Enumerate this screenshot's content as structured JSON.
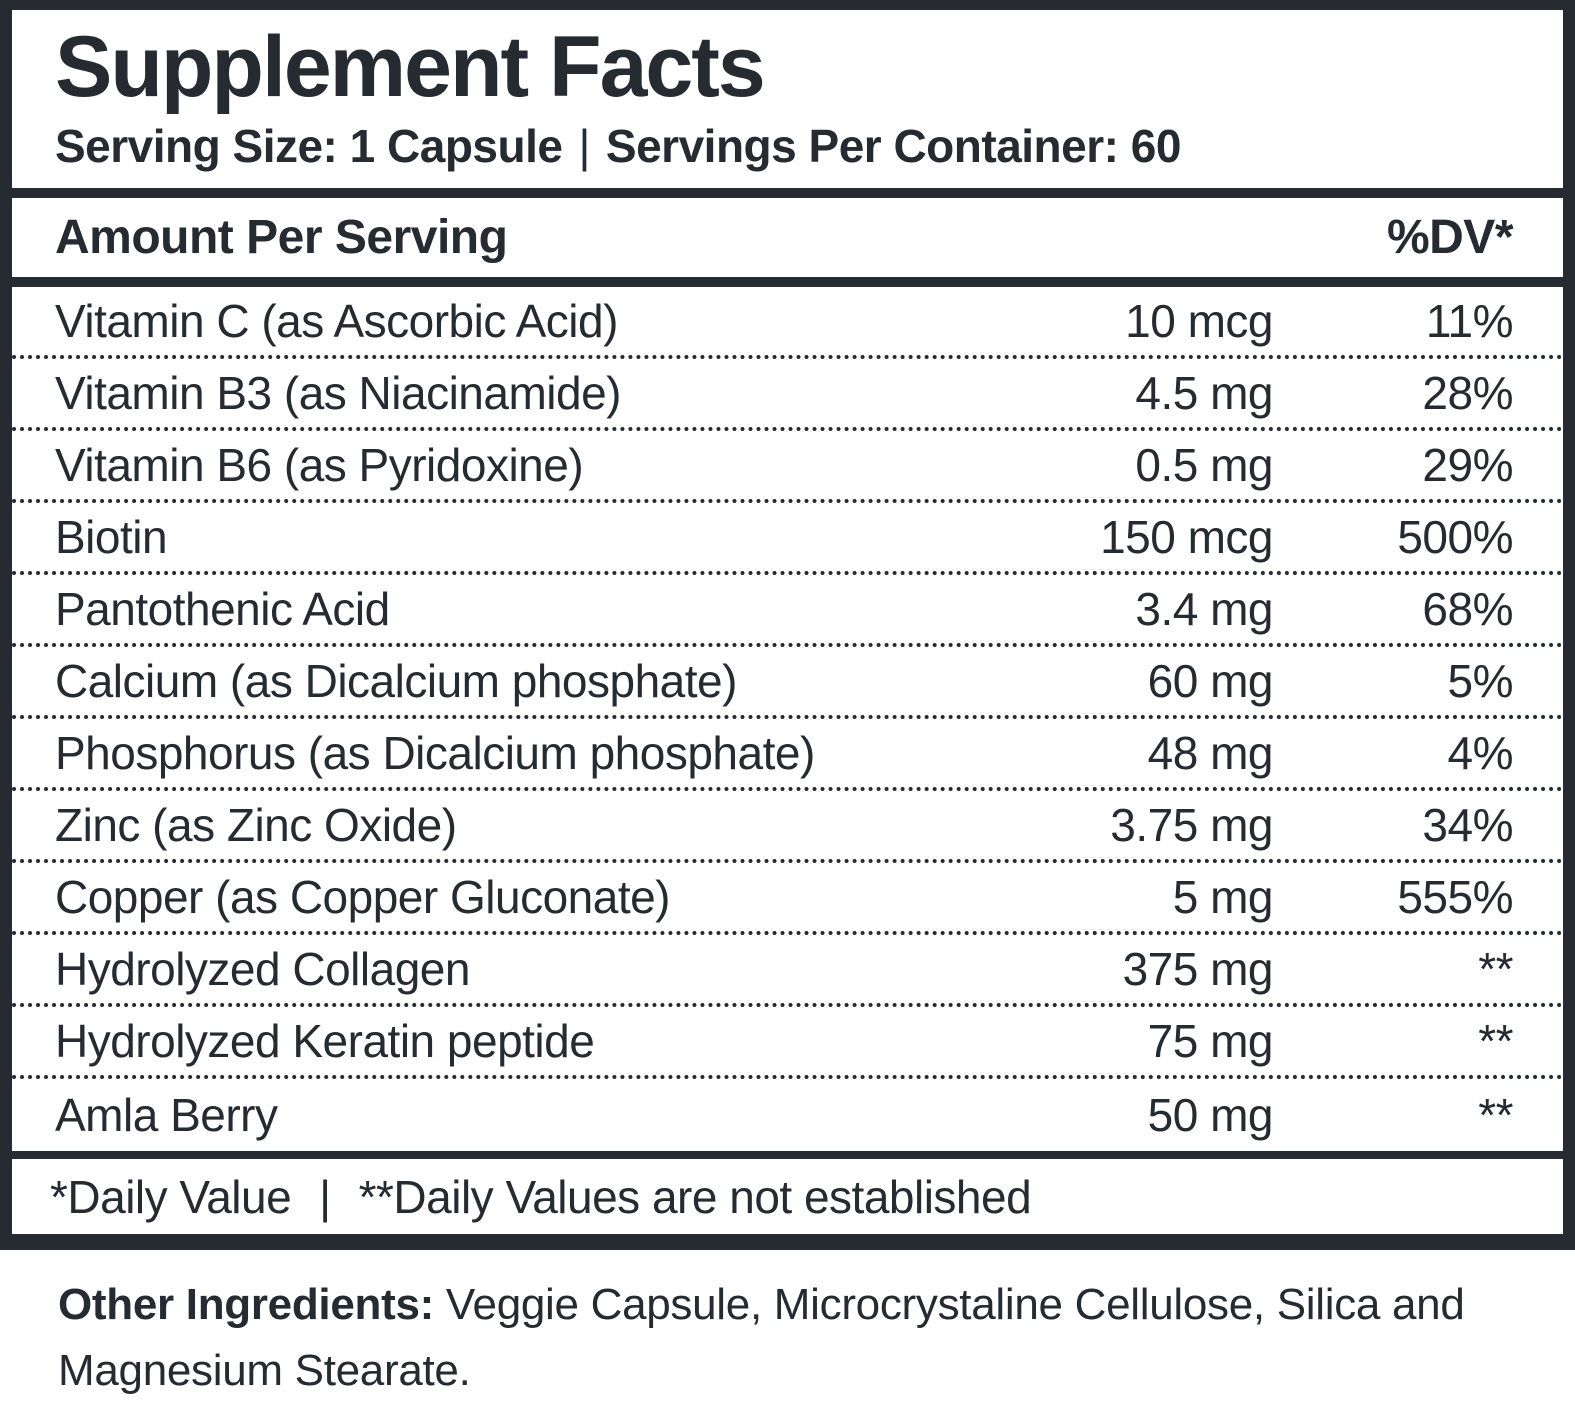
{
  "title": "Supplement Facts",
  "serving": {
    "size": "Serving Size: 1 Capsule",
    "separator": "|",
    "per_container": "Servings Per Container: 60"
  },
  "table": {
    "amount_header": "Amount Per Serving",
    "dv_header": "%DV*",
    "rows": [
      {
        "name": "Vitamin C (as Ascorbic Acid)",
        "amount": "10 mcg",
        "dv": "11%"
      },
      {
        "name": "Vitamin B3 (as Niacinamide)",
        "amount": "4.5 mg",
        "dv": "28%"
      },
      {
        "name": "Vitamin B6 (as Pyridoxine)",
        "amount": "0.5 mg",
        "dv": "29%"
      },
      {
        "name": "Biotin",
        "amount": "150 mcg",
        "dv": "500%"
      },
      {
        "name": "Pantothenic Acid",
        "amount": "3.4 mg",
        "dv": "68%"
      },
      {
        "name": "Calcium (as Dicalcium phosphate)",
        "amount": "60 mg",
        "dv": "5%"
      },
      {
        "name": "Phosphorus (as Dicalcium phosphate)",
        "amount": "48 mg",
        "dv": "4%"
      },
      {
        "name": "Zinc (as Zinc Oxide)",
        "amount": "3.75 mg",
        "dv": "34%"
      },
      {
        "name": "Copper (as Copper Gluconate)",
        "amount": "5 mg",
        "dv": "555%"
      },
      {
        "name": "Hydrolyzed Collagen",
        "amount": "375 mg",
        "dv": "**"
      },
      {
        "name": "Hydrolyzed Keratin peptide",
        "amount": "75 mg",
        "dv": "**"
      },
      {
        "name": "Amla Berry",
        "amount": "50 mg",
        "dv": "**"
      }
    ]
  },
  "footnote": {
    "daily_value": "*Daily Value",
    "separator": "|",
    "not_established": "**Daily Values are not established"
  },
  "other_ingredients": {
    "label": "Other Ingredients:",
    "text": " Veggie Capsule, Microcrystaline Cellulose, Silica and Magnesium Stearate."
  },
  "colors": {
    "ink": "#262b32",
    "background": "#ffffff"
  }
}
